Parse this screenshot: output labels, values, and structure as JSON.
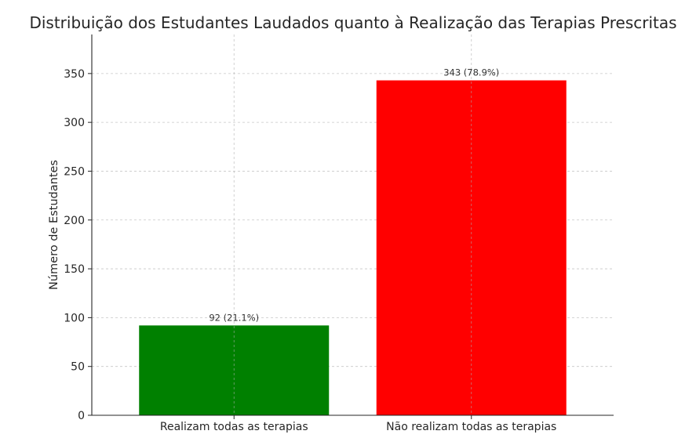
{
  "chart_data": {
    "type": "bar",
    "title": "Distribuição dos Estudantes Laudados quanto à Realização das Terapias Prescritas",
    "xlabel": "",
    "ylabel": "Número de Estudantes",
    "categories": [
      "Realizam todas as terapias",
      "Não realizam todas as terapias"
    ],
    "values": [
      92,
      343
    ],
    "value_labels": [
      "92 (21.1%)",
      "343 (78.9%)"
    ],
    "colors": [
      "#008000",
      "#ff0000"
    ],
    "ylim": [
      0,
      390
    ],
    "yticks": [
      0,
      50,
      100,
      150,
      200,
      250,
      300,
      350
    ],
    "grid": true
  }
}
